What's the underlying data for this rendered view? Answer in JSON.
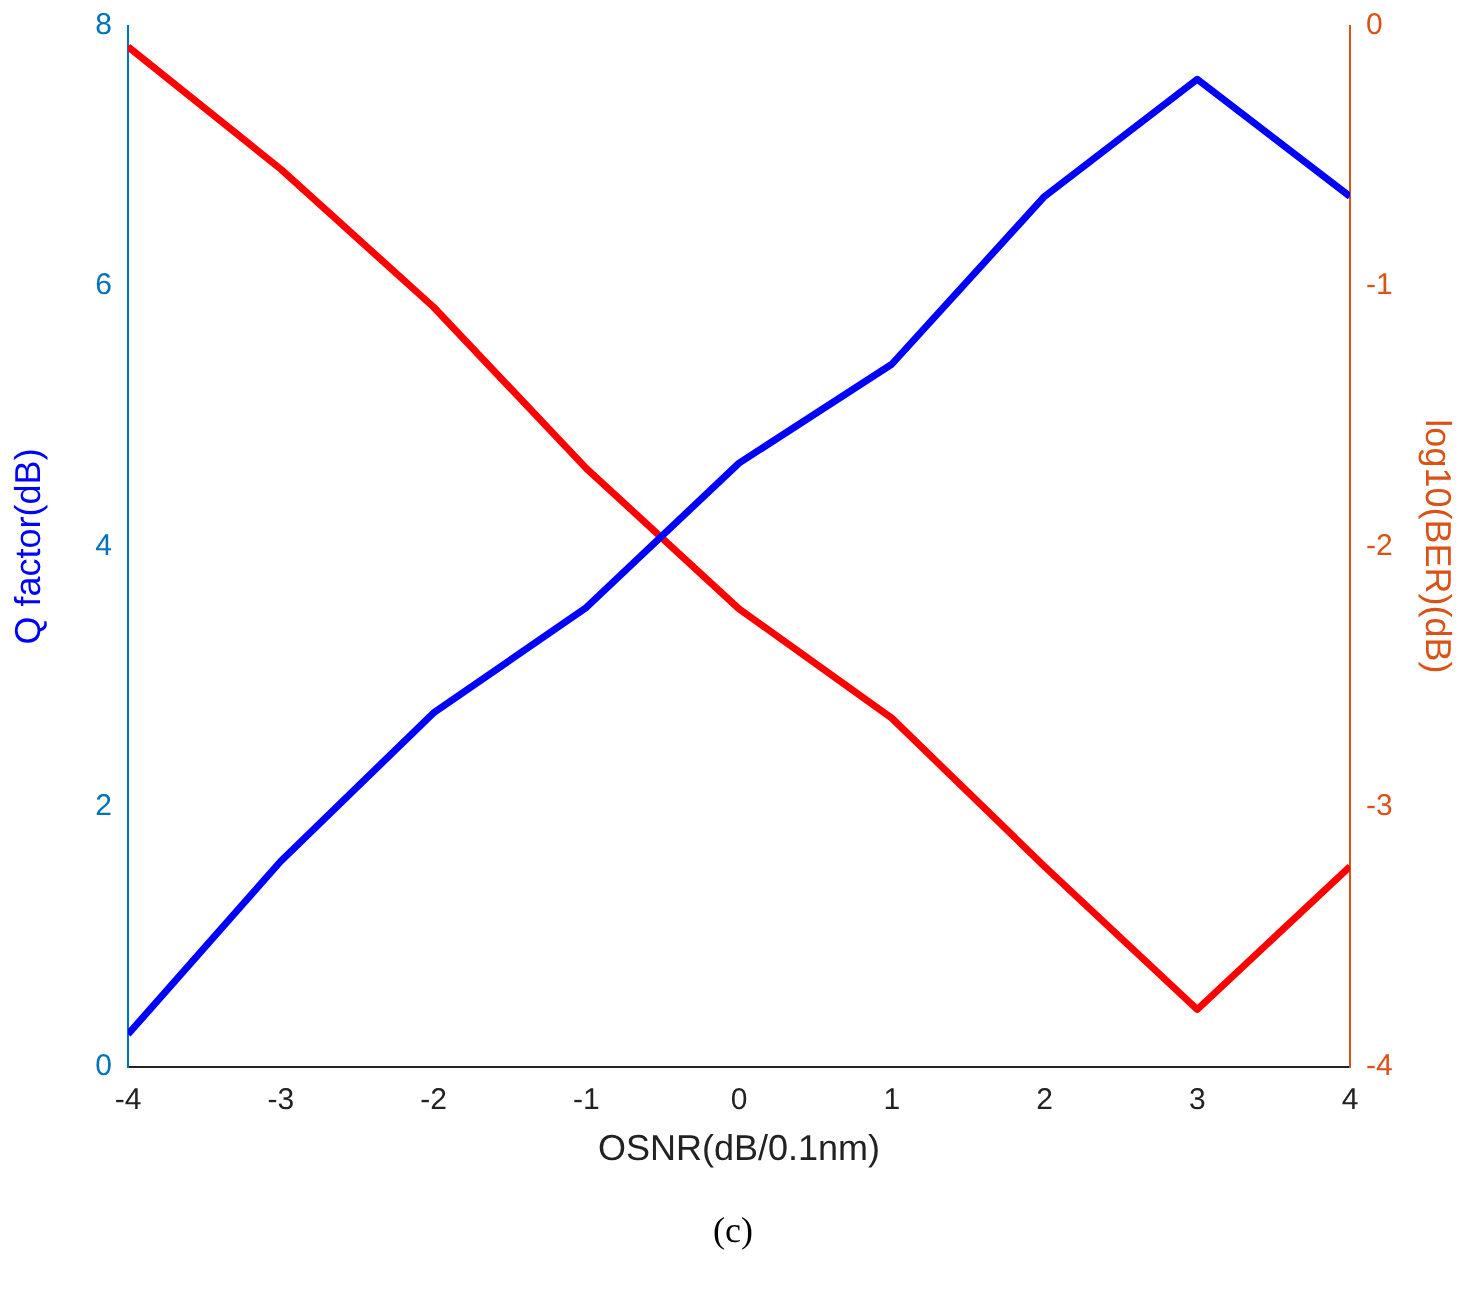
{
  "chart_data": {
    "type": "line",
    "xlabel": "OSNR(dB/0.1nm)",
    "ylabel": "Q factor(dB)",
    "y2label": "log10(BER)(dB)",
    "annotations": [
      "(c)"
    ],
    "x": [
      -4,
      -3,
      -2,
      -1,
      0,
      1,
      2,
      3,
      4
    ],
    "xlim": [
      -4,
      4
    ],
    "xticks": [
      -4,
      -3,
      -2,
      -1,
      0,
      1,
      2,
      3,
      4
    ],
    "ylim": [
      0,
      8
    ],
    "yticks": [
      0,
      2,
      4,
      6,
      8
    ],
    "y2lim": [
      -4,
      0
    ],
    "y2ticks": [
      -4,
      -3,
      -2,
      -1,
      0
    ],
    "grid": false,
    "legend": false,
    "marker": "none",
    "line_style": "solid",
    "series": [
      {
        "color": "#0000ff",
        "values": [
          0.25,
          1.58,
          2.72,
          3.53,
          4.64,
          5.4,
          6.69,
          7.59,
          6.69
        ]
      },
      {
        "color": "#ff0000",
        "axis": "y2",
        "values": [
          -0.08,
          -0.55,
          -1.08,
          -1.7,
          -2.24,
          -2.66,
          -3.23,
          -3.78,
          -3.23
        ]
      }
    ]
  }
}
